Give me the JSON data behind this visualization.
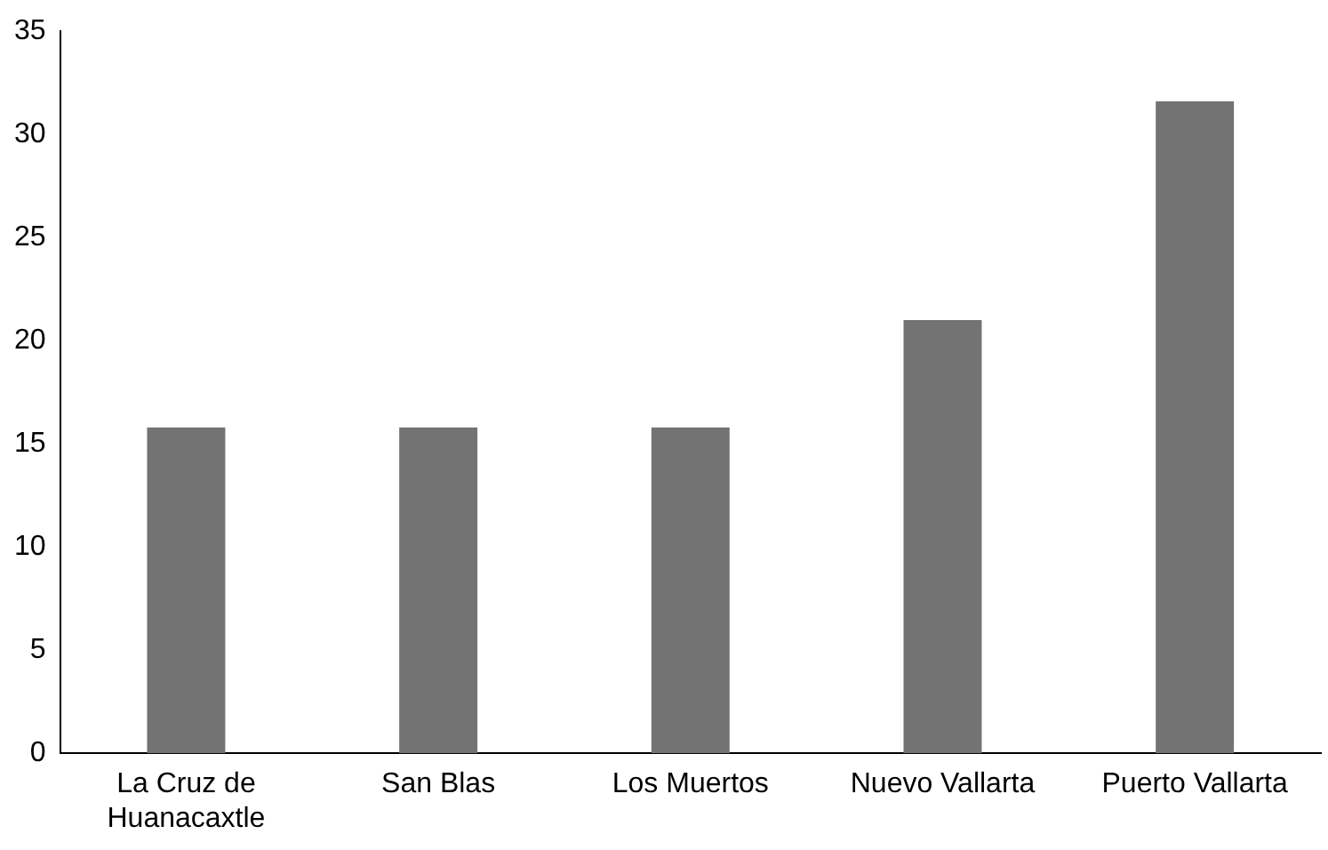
{
  "chart_data": {
    "type": "bar",
    "categories": [
      "La Cruz de Huanacaxtle",
      "San Blas",
      "Los Muertos",
      "Nuevo Vallarta",
      "Puerto Vallarta"
    ],
    "values": [
      15.8,
      15.8,
      15.8,
      21,
      31.6
    ],
    "color": "#737373",
    "ylim": [
      0,
      35
    ],
    "yticks": [
      0,
      5,
      10,
      15,
      20,
      25,
      30,
      35
    ],
    "grid": false,
    "legend": false
  }
}
